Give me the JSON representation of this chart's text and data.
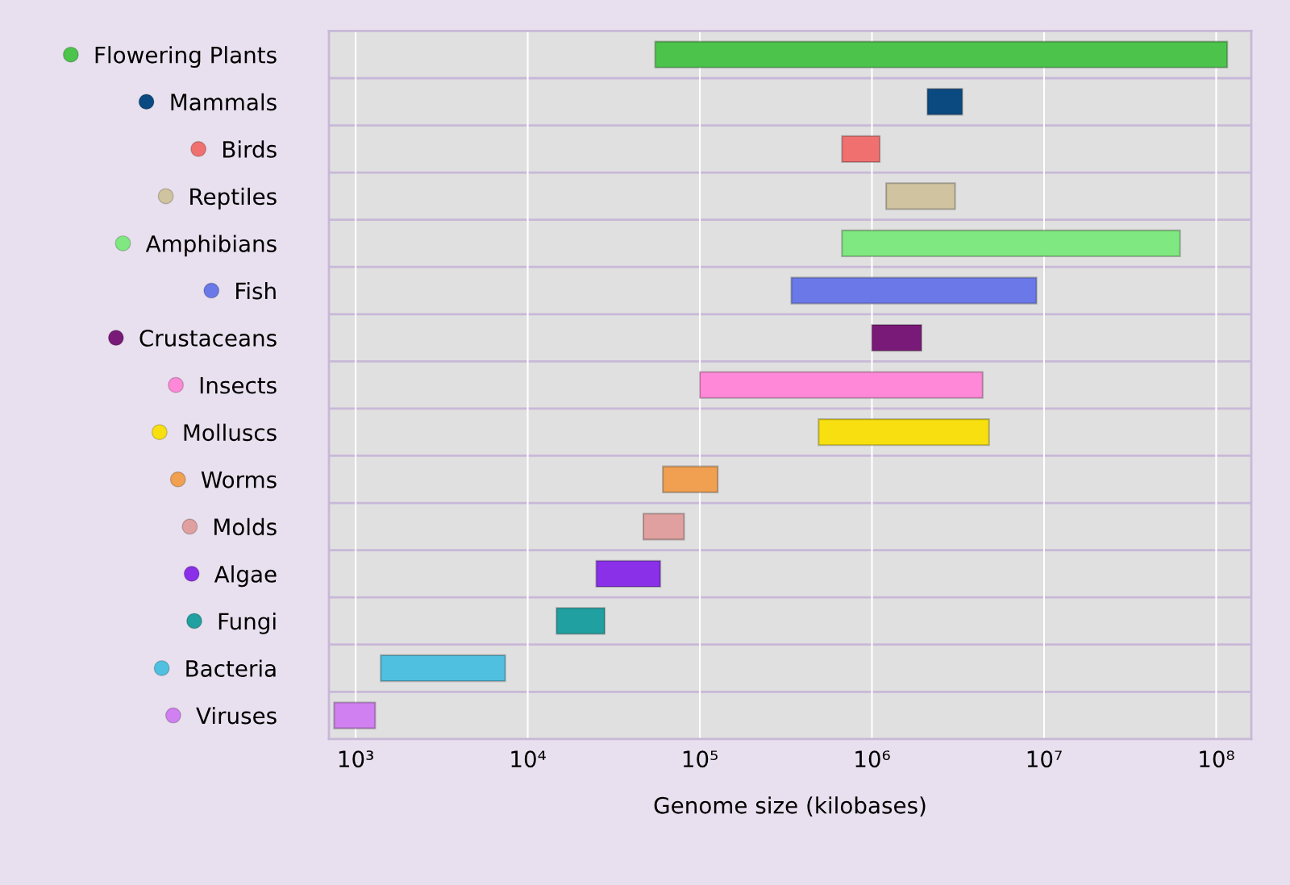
{
  "chart_data": {
    "type": "bar",
    "orientation": "horizontal",
    "xlabel": "Genome size (kilobases)",
    "log": "x",
    "categories": [
      "Flowering Plants",
      "Mammals",
      "Birds",
      "Reptiles",
      "Amphibians",
      "Fish",
      "Crustaceans",
      "Insects",
      "Molluscs",
      "Worms",
      "Molds",
      "Algae",
      "Fungi",
      "Bacteria",
      "Viruses"
    ],
    "base": [
      55000,
      2100000,
      670000,
      1210000,
      670000,
      340000,
      1000000,
      100000,
      490000,
      61000,
      47000,
      25000,
      14700,
      1400,
      750
    ],
    "values": [
      116000000,
      1250000,
      440000,
      1830000,
      61000000,
      8700000,
      940000,
      4300000,
      4300000,
      66000,
      34000,
      34000,
      13300,
      6000,
      550
    ],
    "colors": [
      "#4cc44c",
      "#0a4a80",
      "#f07070",
      "#cfc3a0",
      "#80e880",
      "#6a78e8",
      "#7a1a78",
      "#ff88d8",
      "#f8e010",
      "#f0a050",
      "#e0a0a0",
      "#8a30e8",
      "#20a0a0",
      "#50c0e0",
      "#d080f0"
    ],
    "xlim": [
      700,
      160000000
    ],
    "xticks": [
      {
        "value": 1000,
        "label": "10³"
      },
      {
        "value": 10000,
        "label": "10⁴"
      },
      {
        "value": 100000,
        "label": "10⁵"
      },
      {
        "value": 1000000,
        "label": "10⁶"
      },
      {
        "value": 10000000,
        "label": "10⁷"
      },
      {
        "value": 100000000,
        "label": "10⁸"
      }
    ],
    "grid": "x"
  }
}
